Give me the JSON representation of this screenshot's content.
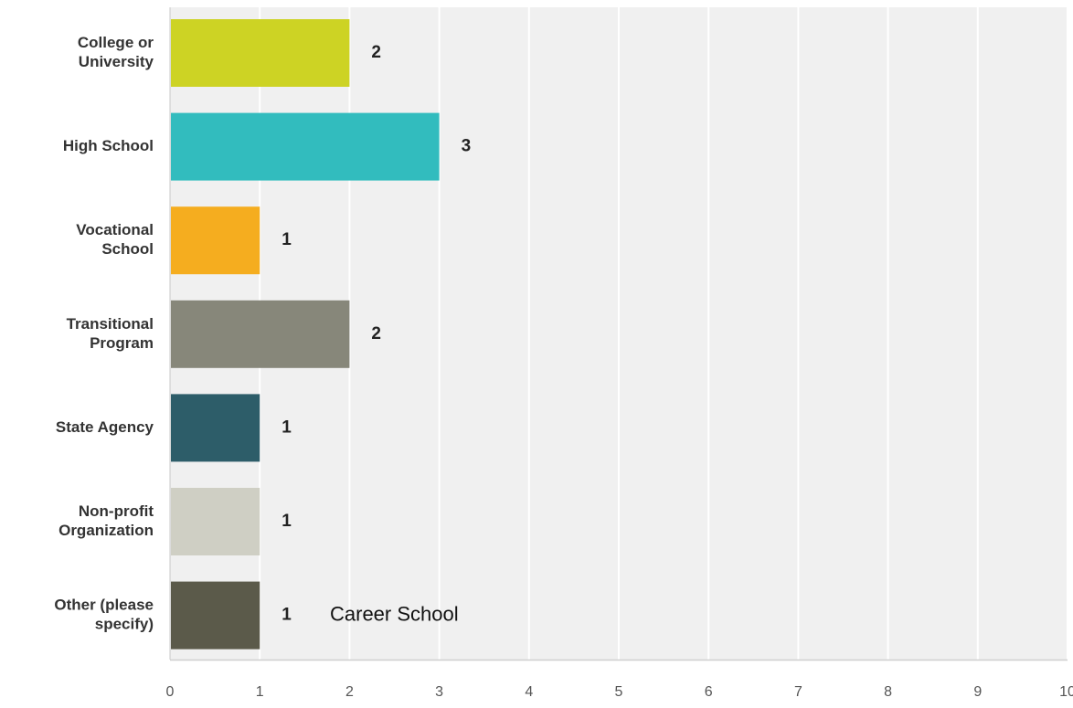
{
  "chart_data": {
    "type": "bar",
    "orientation": "horizontal",
    "categories": [
      [
        "College or",
        "University"
      ],
      [
        "High School"
      ],
      [
        "Vocational",
        "School"
      ],
      [
        "Transitional",
        "Program"
      ],
      [
        "State Agency"
      ],
      [
        "Non-profit",
        "Organization"
      ],
      [
        "Other (please",
        "specify)"
      ]
    ],
    "values": [
      2,
      3,
      1,
      2,
      1,
      1,
      1
    ],
    "bar_colors": [
      "#cdd324",
      "#32bcbe",
      "#f5ad1f",
      "#87877a",
      "#2d5d69",
      "#cfcfc4",
      "#5b5a4a"
    ],
    "xlim": [
      0,
      10
    ],
    "xticks": [
      0,
      1,
      2,
      3,
      4,
      5,
      6,
      7,
      8,
      9,
      10
    ],
    "grid": true,
    "plot_background": "#f0f0f0",
    "gridline_color": "#ffffff",
    "annotations": [
      {
        "category_index": 6,
        "text": "Career School"
      }
    ]
  }
}
